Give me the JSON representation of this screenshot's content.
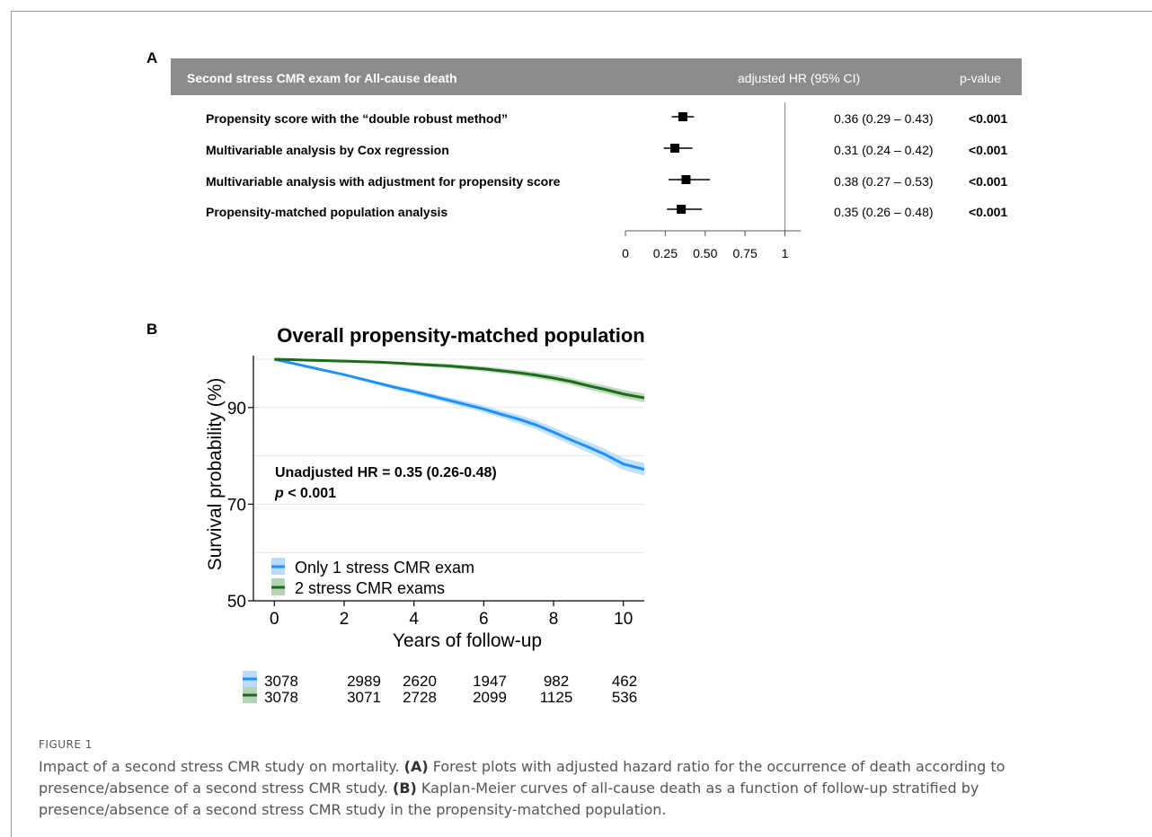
{
  "panel_a": {
    "letter": "A",
    "header": {
      "title": "Second stress CMR exam for All-cause death",
      "hr_col": "adjusted HR (95% CI)",
      "p_col": "p-value"
    },
    "rows": [
      {
        "label": "Propensity score with the “double robust method”",
        "ci": "0.36 (0.29 – 0.43)",
        "p": "<0.001"
      },
      {
        "label": "Multivariable analysis by Cox regression",
        "ci": "0.31 (0.24 – 0.42)",
        "p": "<0.001"
      },
      {
        "label": "Multivariable analysis with adjustment for propensity score",
        "ci": "0.38 (0.27 – 0.53)",
        "p": "<0.001"
      },
      {
        "label": "Propensity-matched population analysis",
        "ci": "0.35 (0.26 – 0.48)",
        "p": "<0.001"
      }
    ]
  },
  "panel_b": {
    "letter": "B",
    "title": "Overall propensity-matched population",
    "ylabel": "Survival probability (%)",
    "xlabel": "Years of follow-up",
    "annotation_line1": "Unadjusted HR = 0.35 (0.26-0.48)",
    "annotation_p": "p",
    "annotation_line2_rest": " < 0.001",
    "legend": [
      "Only 1 stress CMR exam",
      "2 stress CMR exams"
    ]
  },
  "caption": {
    "figure_label": "FIGURE 1",
    "text_intro": "Impact of a second stress CMR study on mortality. ",
    "label_a": "(A)",
    "text_a": " Forest plots with adjusted hazard ratio for the occurrence of death according to presence/absence of a second stress CMR study. ",
    "label_b": "(B)",
    "text_b": " Kaplan-Meier curves of all-cause death as a function of follow-up stratified by presence/absence of a second stress CMR study in the propensity-matched population."
  },
  "colors": {
    "blue": "#1e90ff",
    "blue_band": "#b8dcfa",
    "green": "#1a6b1a",
    "green_band": "#b5d3b5",
    "header_bg": "#8c8c8c"
  },
  "chart_data": [
    {
      "type": "forest",
      "categories": [
        "Propensity score with the “double robust method”",
        "Multivariable analysis by Cox regression",
        "Multivariable analysis with adjustment for propensity score",
        "Propensity-matched population analysis"
      ],
      "hr": [
        0.36,
        0.31,
        0.38,
        0.35
      ],
      "ci_low": [
        0.29,
        0.24,
        0.27,
        0.26
      ],
      "ci_high": [
        0.43,
        0.42,
        0.53,
        0.48
      ],
      "xticks": [
        "0",
        "0.25",
        "0.50",
        "0.75",
        "1"
      ],
      "xlim": [
        0,
        1.1
      ],
      "reference_line": 1
    },
    {
      "type": "line",
      "title": "Overall propensity-matched population",
      "xlabel": "Years of follow-up",
      "ylabel": "Survival probability (%)",
      "xlim": [
        -0.6,
        10.6
      ],
      "ylim": [
        50,
        100
      ],
      "xticks": [
        0,
        2,
        4,
        6,
        8,
        10
      ],
      "yticks": [
        50,
        70,
        90
      ],
      "series": [
        {
          "name": "Only 1 stress CMR exam",
          "x": [
            0,
            0.5,
            1,
            1.5,
            2,
            2.5,
            3,
            3.5,
            4,
            4.5,
            5,
            5.5,
            6,
            6.5,
            7,
            7.5,
            8,
            8.5,
            9,
            9.5,
            10,
            10.6
          ],
          "y": [
            100,
            99.2,
            98.4,
            97.6,
            96.8,
            95.9,
            95.0,
            94.1,
            93.3,
            92.4,
            91.5,
            90.6,
            89.7,
            88.6,
            87.6,
            86.4,
            84.9,
            83.3,
            81.8,
            80.2,
            78.3,
            77.2
          ],
          "band": 1.3
        },
        {
          "name": "2 stress CMR exams",
          "x": [
            0,
            0.5,
            1,
            1.5,
            2,
            2.5,
            3,
            3.5,
            4,
            4.5,
            5,
            5.5,
            6,
            6.5,
            7,
            7.5,
            8,
            8.5,
            9,
            9.5,
            10,
            10.6
          ],
          "y": [
            100,
            99.9,
            99.8,
            99.7,
            99.6,
            99.5,
            99.4,
            99.2,
            99.0,
            98.8,
            98.6,
            98.3,
            98.0,
            97.6,
            97.2,
            96.7,
            96.1,
            95.4,
            94.5,
            93.7,
            92.8,
            92.0
          ],
          "band": 0.9
        }
      ],
      "risk_table": {
        "times": [
          0,
          2,
          4,
          6,
          8,
          10
        ],
        "rows": [
          {
            "name": "Only 1 stress CMR exam",
            "counts": [
              3078,
              2989,
              2620,
              1947,
              982,
              462
            ]
          },
          {
            "name": "2 stress CMR exams",
            "counts": [
              3078,
              3071,
              2728,
              2099,
              1125,
              536
            ]
          }
        ]
      }
    }
  ]
}
